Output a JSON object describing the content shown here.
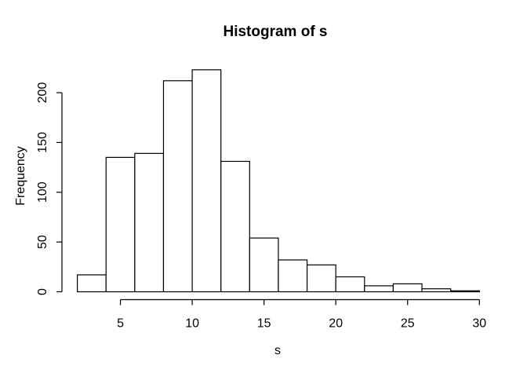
{
  "figure": {
    "background": "#ffffff"
  },
  "chart_data": {
    "type": "bar",
    "subtype": "histogram",
    "title": "Histogram of s",
    "xlabel": "s",
    "ylabel": "Frequency",
    "breaks": [
      2,
      4,
      6,
      8,
      10,
      12,
      14,
      16,
      18,
      20,
      22,
      24,
      26,
      28,
      30
    ],
    "counts": [
      17,
      135,
      139,
      212,
      223,
      131,
      54,
      32,
      27,
      15,
      6,
      8,
      3,
      1
    ],
    "x_ticks": [
      5,
      10,
      15,
      20,
      25,
      30
    ],
    "y_ticks": [
      0,
      50,
      100,
      150,
      200
    ],
    "xlim": [
      2,
      30
    ],
    "ylim": [
      0,
      223
    ],
    "grid": false,
    "bar_fill": "#ffffff",
    "bar_stroke": "#000000",
    "axis_color": "#000000",
    "text_color": "#000000"
  }
}
